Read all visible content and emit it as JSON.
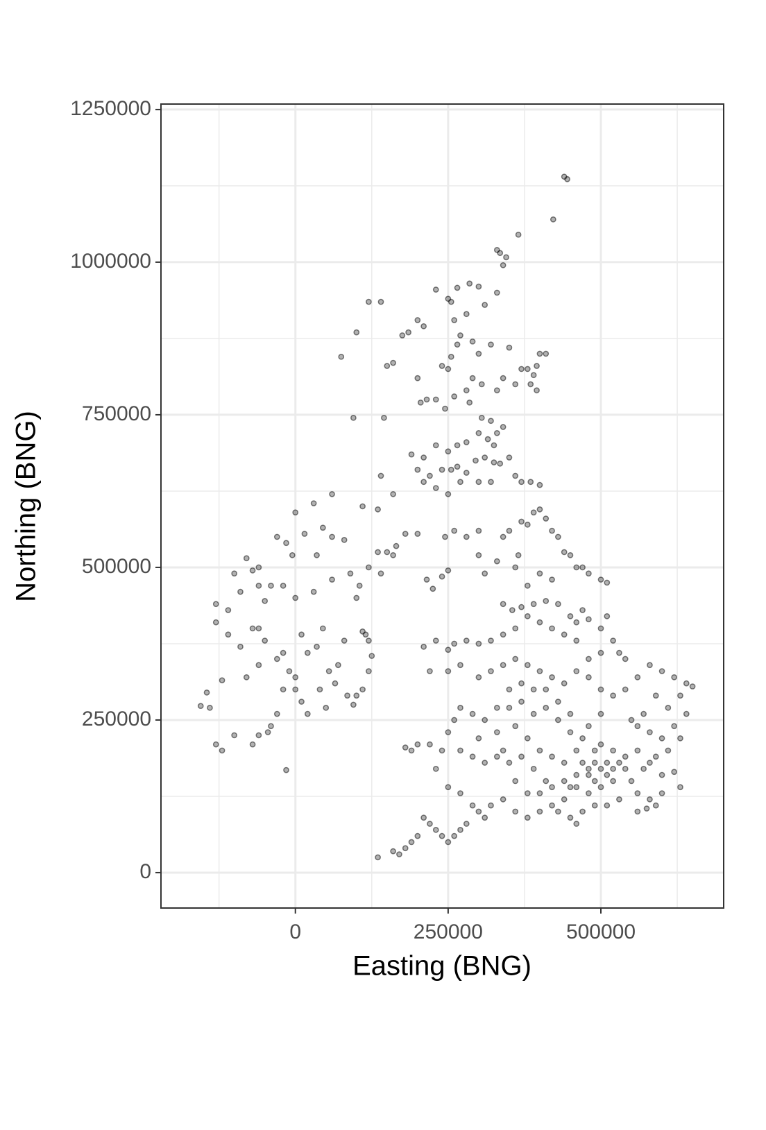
{
  "chart_data": {
    "type": "scatter",
    "x_label": "Easting (BNG)",
    "y_label": "Northing (BNG)",
    "xlim": [
      -220000,
      701000
    ],
    "ylim": [
      -58000,
      1259000
    ],
    "xticks": [
      0,
      250000,
      500000
    ],
    "yticks": [
      0,
      250000,
      500000,
      750000,
      1000000,
      1250000
    ],
    "x_minor_breaks": [
      -125000,
      125000,
      375000,
      625000
    ],
    "y_minor_breaks": [
      125000,
      375000,
      625000,
      875000,
      1125000
    ],
    "grid": true,
    "color": "#000000",
    "alpha": 0.5,
    "x": [
      440000,
      445000,
      422000,
      365000,
      330000,
      335000,
      340000,
      345000,
      230000,
      250000,
      265000,
      285000,
      300000,
      330000,
      310000,
      280000,
      260000,
      255000,
      120000,
      140000,
      200000,
      210000,
      185000,
      175000,
      270000,
      265000,
      255000,
      290000,
      320000,
      300000,
      350000,
      400000,
      410000,
      395000,
      390000,
      380000,
      370000,
      385000,
      395000,
      360000,
      340000,
      330000,
      290000,
      305000,
      280000,
      240000,
      250000,
      200000,
      160000,
      150000,
      100000,
      75000,
      95000,
      145000,
      205000,
      215000,
      230000,
      260000,
      245000,
      285000,
      305000,
      320000,
      340000,
      330000,
      315000,
      325000,
      300000,
      280000,
      265000,
      250000,
      230000,
      210000,
      190000,
      200000,
      220000,
      240000,
      255000,
      265000,
      280000,
      295000,
      310000,
      325000,
      335000,
      350000,
      360000,
      370000,
      385000,
      400000,
      320000,
      300000,
      270000,
      250000,
      230000,
      210000,
      60000,
      140000,
      160000,
      110000,
      135000,
      30000,
      0,
      45000,
      80000,
      60000,
      15000,
      -30000,
      -15000,
      35000,
      -5000,
      -80000,
      -60000,
      -100000,
      -70000,
      -40000,
      -60000,
      -90000,
      -130000,
      -110000,
      -50000,
      -20000,
      0,
      30000,
      60000,
      90000,
      105000,
      100000,
      120000,
      135000,
      150000,
      160000,
      165000,
      140000,
      110000,
      115000,
      120000,
      125000,
      120000,
      110000,
      100000,
      95000,
      85000,
      70000,
      65000,
      50000,
      40000,
      20000,
      10000,
      0,
      -20000,
      -30000,
      -40000,
      -45000,
      -60000,
      -70000,
      -100000,
      -120000,
      -130000,
      -140000,
      -145000,
      -155000,
      -120000,
      -110000,
      -90000,
      -70000,
      -60000,
      -50000,
      -30000,
      -20000,
      -10000,
      0,
      10000,
      20000,
      35000,
      45000,
      55000,
      80000,
      -80000,
      -60000,
      -130000,
      -15000,
      180000,
      200000,
      215000,
      225000,
      240000,
      250000,
      245000,
      260000,
      280000,
      300000,
      300000,
      310000,
      330000,
      340000,
      350000,
      370000,
      380000,
      390000,
      400000,
      410000,
      420000,
      430000,
      440000,
      450000,
      460000,
      470000,
      480000,
      500000,
      510000,
      420000,
      400000,
      380000,
      360000,
      365000,
      340000,
      355000,
      370000,
      390000,
      410000,
      430000,
      450000,
      460000,
      470000,
      480000,
      500000,
      510000,
      520000,
      530000,
      540000,
      500000,
      480000,
      460000,
      440000,
      420000,
      400000,
      380000,
      360000,
      340000,
      320000,
      300000,
      280000,
      260000,
      250000,
      230000,
      210000,
      220000,
      250000,
      270000,
      300000,
      320000,
      340000,
      360000,
      380000,
      400000,
      420000,
      440000,
      460000,
      480000,
      500000,
      520000,
      540000,
      560000,
      580000,
      600000,
      620000,
      640000,
      650000,
      630000,
      610000,
      590000,
      570000,
      560000,
      550000,
      580000,
      600000,
      620000,
      640000,
      630000,
      610000,
      590000,
      570000,
      550000,
      560000,
      580000,
      590000,
      600000,
      620000,
      630000,
      540000,
      530000,
      520000,
      510000,
      500000,
      490000,
      480000,
      470000,
      460000,
      450000,
      440000,
      430000,
      450000,
      460000,
      470000,
      490000,
      510000,
      530000,
      520000,
      500000,
      490000,
      470000,
      450000,
      430000,
      410000,
      390000,
      370000,
      350000,
      330000,
      310000,
      290000,
      270000,
      260000,
      250000,
      240000,
      220000,
      200000,
      190000,
      180000,
      230000,
      250000,
      270000,
      290000,
      300000,
      310000,
      280000,
      270000,
      260000,
      250000,
      240000,
      230000,
      220000,
      210000,
      200000,
      190000,
      180000,
      170000,
      160000,
      135000,
      320000,
      340000,
      360000,
      380000,
      400000,
      420000,
      410000,
      390000,
      370000,
      350000,
      330000,
      310000,
      290000,
      270000,
      300000,
      330000,
      360000,
      380000,
      400000,
      420000,
      440000,
      460000,
      480000,
      500000,
      450000,
      430000,
      410000,
      390000,
      370000,
      350000,
      340000,
      360000,
      380000,
      400000,
      420000,
      440000,
      460000,
      480000,
      500000,
      520000,
      540000,
      560000,
      580000,
      600000,
      560000,
      575000,
      510000,
      490000,
      480000
    ],
    "values": [
      1140000,
      1136000,
      1070000,
      1045000,
      1020000,
      1015000,
      995000,
      1008000,
      955000,
      940000,
      958000,
      965000,
      960000,
      950000,
      930000,
      915000,
      905000,
      935000,
      935000,
      935000,
      905000,
      895000,
      885000,
      880000,
      880000,
      865000,
      845000,
      870000,
      865000,
      850000,
      860000,
      850000,
      850000,
      830000,
      815000,
      825000,
      825000,
      800000,
      790000,
      800000,
      810000,
      790000,
      810000,
      800000,
      790000,
      830000,
      825000,
      810000,
      835000,
      830000,
      885000,
      845000,
      745000,
      745000,
      770000,
      775000,
      775000,
      780000,
      760000,
      770000,
      745000,
      740000,
      730000,
      720000,
      710000,
      700000,
      720000,
      705000,
      700000,
      690000,
      700000,
      680000,
      685000,
      660000,
      650000,
      660000,
      660000,
      665000,
      655000,
      675000,
      680000,
      672000,
      670000,
      680000,
      650000,
      640000,
      640000,
      635000,
      640000,
      640000,
      640000,
      620000,
      630000,
      640000,
      620000,
      650000,
      620000,
      600000,
      595000,
      605000,
      590000,
      565000,
      545000,
      550000,
      555000,
      550000,
      540000,
      520000,
      520000,
      515000,
      500000,
      490000,
      495000,
      470000,
      470000,
      460000,
      440000,
      430000,
      445000,
      470000,
      450000,
      460000,
      480000,
      490000,
      470000,
      450000,
      500000,
      525000,
      525000,
      520000,
      535000,
      490000,
      395000,
      390000,
      380000,
      355000,
      330000,
      300000,
      290000,
      275000,
      290000,
      340000,
      310000,
      270000,
      300000,
      260000,
      280000,
      300000,
      300000,
      260000,
      240000,
      230000,
      225000,
      210000,
      225000,
      200000,
      210000,
      270000,
      295000,
      273000,
      315000,
      390000,
      370000,
      400000,
      400000,
      380000,
      350000,
      360000,
      330000,
      320000,
      390000,
      360000,
      370000,
      400000,
      330000,
      380000,
      320000,
      340000,
      410000,
      168000,
      555000,
      555000,
      480000,
      465000,
      485000,
      495000,
      550000,
      560000,
      550000,
      560000,
      520000,
      490000,
      510000,
      550000,
      560000,
      575000,
      570000,
      590000,
      595000,
      580000,
      560000,
      550000,
      525000,
      520000,
      500000,
      500000,
      490000,
      480000,
      475000,
      480000,
      490000,
      470000,
      500000,
      520000,
      440000,
      430000,
      435000,
      440000,
      445000,
      440000,
      420000,
      410000,
      430000,
      415000,
      400000,
      420000,
      380000,
      360000,
      350000,
      360000,
      350000,
      380000,
      390000,
      400000,
      410000,
      420000,
      400000,
      390000,
      380000,
      375000,
      380000,
      375000,
      365000,
      380000,
      370000,
      330000,
      330000,
      340000,
      320000,
      330000,
      340000,
      350000,
      340000,
      330000,
      320000,
      310000,
      330000,
      320000,
      300000,
      290000,
      300000,
      320000,
      340000,
      330000,
      320000,
      310000,
      305000,
      290000,
      270000,
      290000,
      260000,
      240000,
      250000,
      230000,
      220000,
      240000,
      260000,
      220000,
      200000,
      190000,
      170000,
      150000,
      130000,
      120000,
      110000,
      130000,
      165000,
      140000,
      170000,
      180000,
      170000,
      160000,
      170000,
      150000,
      160000,
      180000,
      160000,
      140000,
      120000,
      100000,
      90000,
      80000,
      100000,
      110000,
      110000,
      120000,
      200000,
      210000,
      200000,
      220000,
      230000,
      250000,
      270000,
      260000,
      280000,
      300000,
      270000,
      250000,
      260000,
      270000,
      250000,
      230000,
      200000,
      210000,
      210000,
      200000,
      205000,
      170000,
      140000,
      130000,
      110000,
      100000,
      90000,
      80000,
      70000,
      60000,
      50000,
      60000,
      70000,
      80000,
      90000,
      60000,
      50000,
      40000,
      30000,
      35000,
      25000,
      110000,
      120000,
      100000,
      90000,
      100000,
      110000,
      150000,
      170000,
      190000,
      180000,
      190000,
      180000,
      190000,
      200000,
      220000,
      230000,
      240000,
      220000,
      200000,
      190000,
      180000,
      200000,
      240000,
      260000,
      260000,
      280000,
      300000,
      300000,
      310000,
      270000,
      200000,
      150000,
      130000,
      130000,
      140000,
      150000,
      140000,
      130000,
      140000,
      150000,
      190000,
      200000,
      180000,
      160000,
      100000,
      105000,
      180000,
      180000,
      170000
    ]
  }
}
